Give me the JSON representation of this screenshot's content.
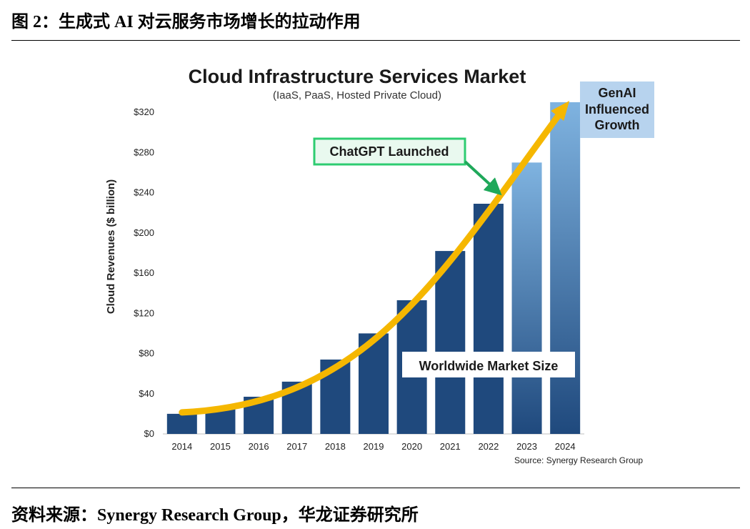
{
  "caption": {
    "figure": "图 2：生成式 AI 对云服务市场增长的拉动作用",
    "source": "资料来源：Synergy Research Group，华龙证券研究所"
  },
  "colors": {
    "bar": "#1f497d",
    "bar_highlight": "#7fb3e0",
    "arrow": "#f5b700",
    "callout_border": "#2ecc71",
    "callout_fill": "#e9f9ef",
    "callout_arrow": "#1fa85a",
    "genai_box": "#b7d3ee"
  },
  "chart_data": {
    "type": "bar",
    "title": "Cloud Infrastructure Services Market",
    "subtitle": "(IaaS, PaaS, Hosted Private Cloud)",
    "xlabel": "",
    "ylabel": "Cloud Revenues ($ billion)",
    "categories": [
      "2014",
      "2015",
      "2016",
      "2017",
      "2018",
      "2019",
      "2020",
      "2021",
      "2022",
      "2023",
      "2024"
    ],
    "values": [
      20,
      26,
      37,
      52,
      74,
      100,
      133,
      182,
      229,
      270,
      330
    ],
    "genai_fade_years": [
      "2023",
      "2024"
    ],
    "ylim": [
      0,
      330
    ],
    "yticks": [
      0,
      40,
      80,
      120,
      160,
      200,
      240,
      280,
      320
    ],
    "ytick_labels": [
      "$0",
      "$40",
      "$80",
      "$120",
      "$160",
      "$200",
      "$240",
      "$280",
      "$320"
    ],
    "annotations": {
      "chatgpt": "ChatGPT Launched",
      "market_size": "Worldwide Market Size",
      "genai_lines": [
        "GenAI",
        "Influenced",
        "Growth"
      ]
    },
    "source": "Source: Synergy Research Group"
  }
}
